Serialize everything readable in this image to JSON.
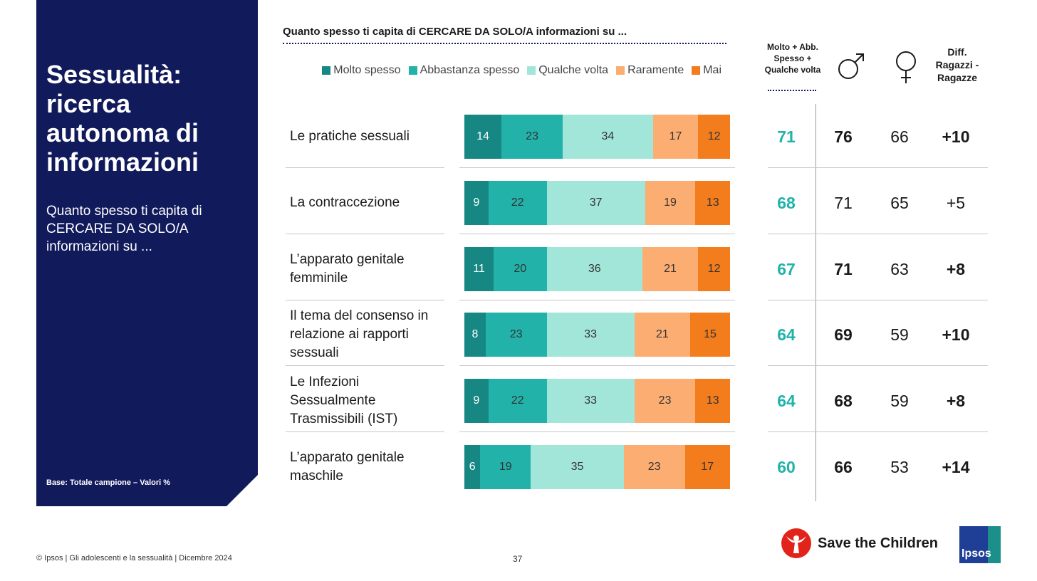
{
  "side": {
    "title": "Sessualità: ricerca autonoma di informazioni",
    "subtitle": "Quanto spesso ti capita di CERCARE DA SOLO/A informazioni su ...",
    "base": "Base: Totale campione – Valori %"
  },
  "chart_data": {
    "type": "bar",
    "orientation": "horizontal",
    "stacked": true,
    "title": "Quanto spesso ti capita di CERCARE DA SOLO/A informazioni su ...",
    "categories": [
      "Le pratiche sessuali",
      "La contraccezione",
      "L’apparato genitale femminile",
      "Il tema del consenso in relazione ai rapporti sessuali",
      "Le Infezioni Sessualmente Trasmissibili (IST)",
      "L’apparato genitale maschile"
    ],
    "series": [
      {
        "name": "Molto spesso",
        "color": "#168782",
        "values": [
          14,
          9,
          11,
          8,
          9,
          6
        ]
      },
      {
        "name": "Abbastanza spesso",
        "color": "#22b2aa",
        "values": [
          23,
          22,
          20,
          23,
          22,
          19
        ]
      },
      {
        "name": "Qualche volta",
        "color": "#a2e6da",
        "values": [
          34,
          37,
          36,
          33,
          33,
          35
        ]
      },
      {
        "name": "Raramente",
        "color": "#fcad72",
        "values": [
          17,
          19,
          21,
          21,
          23,
          23
        ]
      },
      {
        "name": "Mai",
        "color": "#f37c1c",
        "values": [
          12,
          13,
          12,
          15,
          13,
          17
        ]
      }
    ],
    "legend_position": "top-right",
    "xlim": [
      0,
      100
    ]
  },
  "table": {
    "headers": {
      "total": "Molto + Abb. Spesso + Qualche volta",
      "male_icon": "male-symbol-icon",
      "female_icon": "female-symbol-icon",
      "diff": "Diff. Ragazzi - Ragazze"
    },
    "total": [
      "71",
      "68",
      "67",
      "64",
      "64",
      "60"
    ],
    "boys": [
      "76",
      "71",
      "71",
      "69",
      "68",
      "66"
    ],
    "girls": [
      "66",
      "65",
      "63",
      "59",
      "59",
      "53"
    ],
    "diff": [
      "+10",
      "+5",
      "+8",
      "+10",
      "+8",
      "+14"
    ],
    "bold_boys": [
      true,
      false,
      true,
      true,
      true,
      true
    ]
  },
  "footer": {
    "copyright": "© Ipsos | Gli adolescenti e la sessualità | Dicembre 2024",
    "page": "37",
    "logo_stc": "Save the Children",
    "logo_ipsos": "Ipsos"
  }
}
